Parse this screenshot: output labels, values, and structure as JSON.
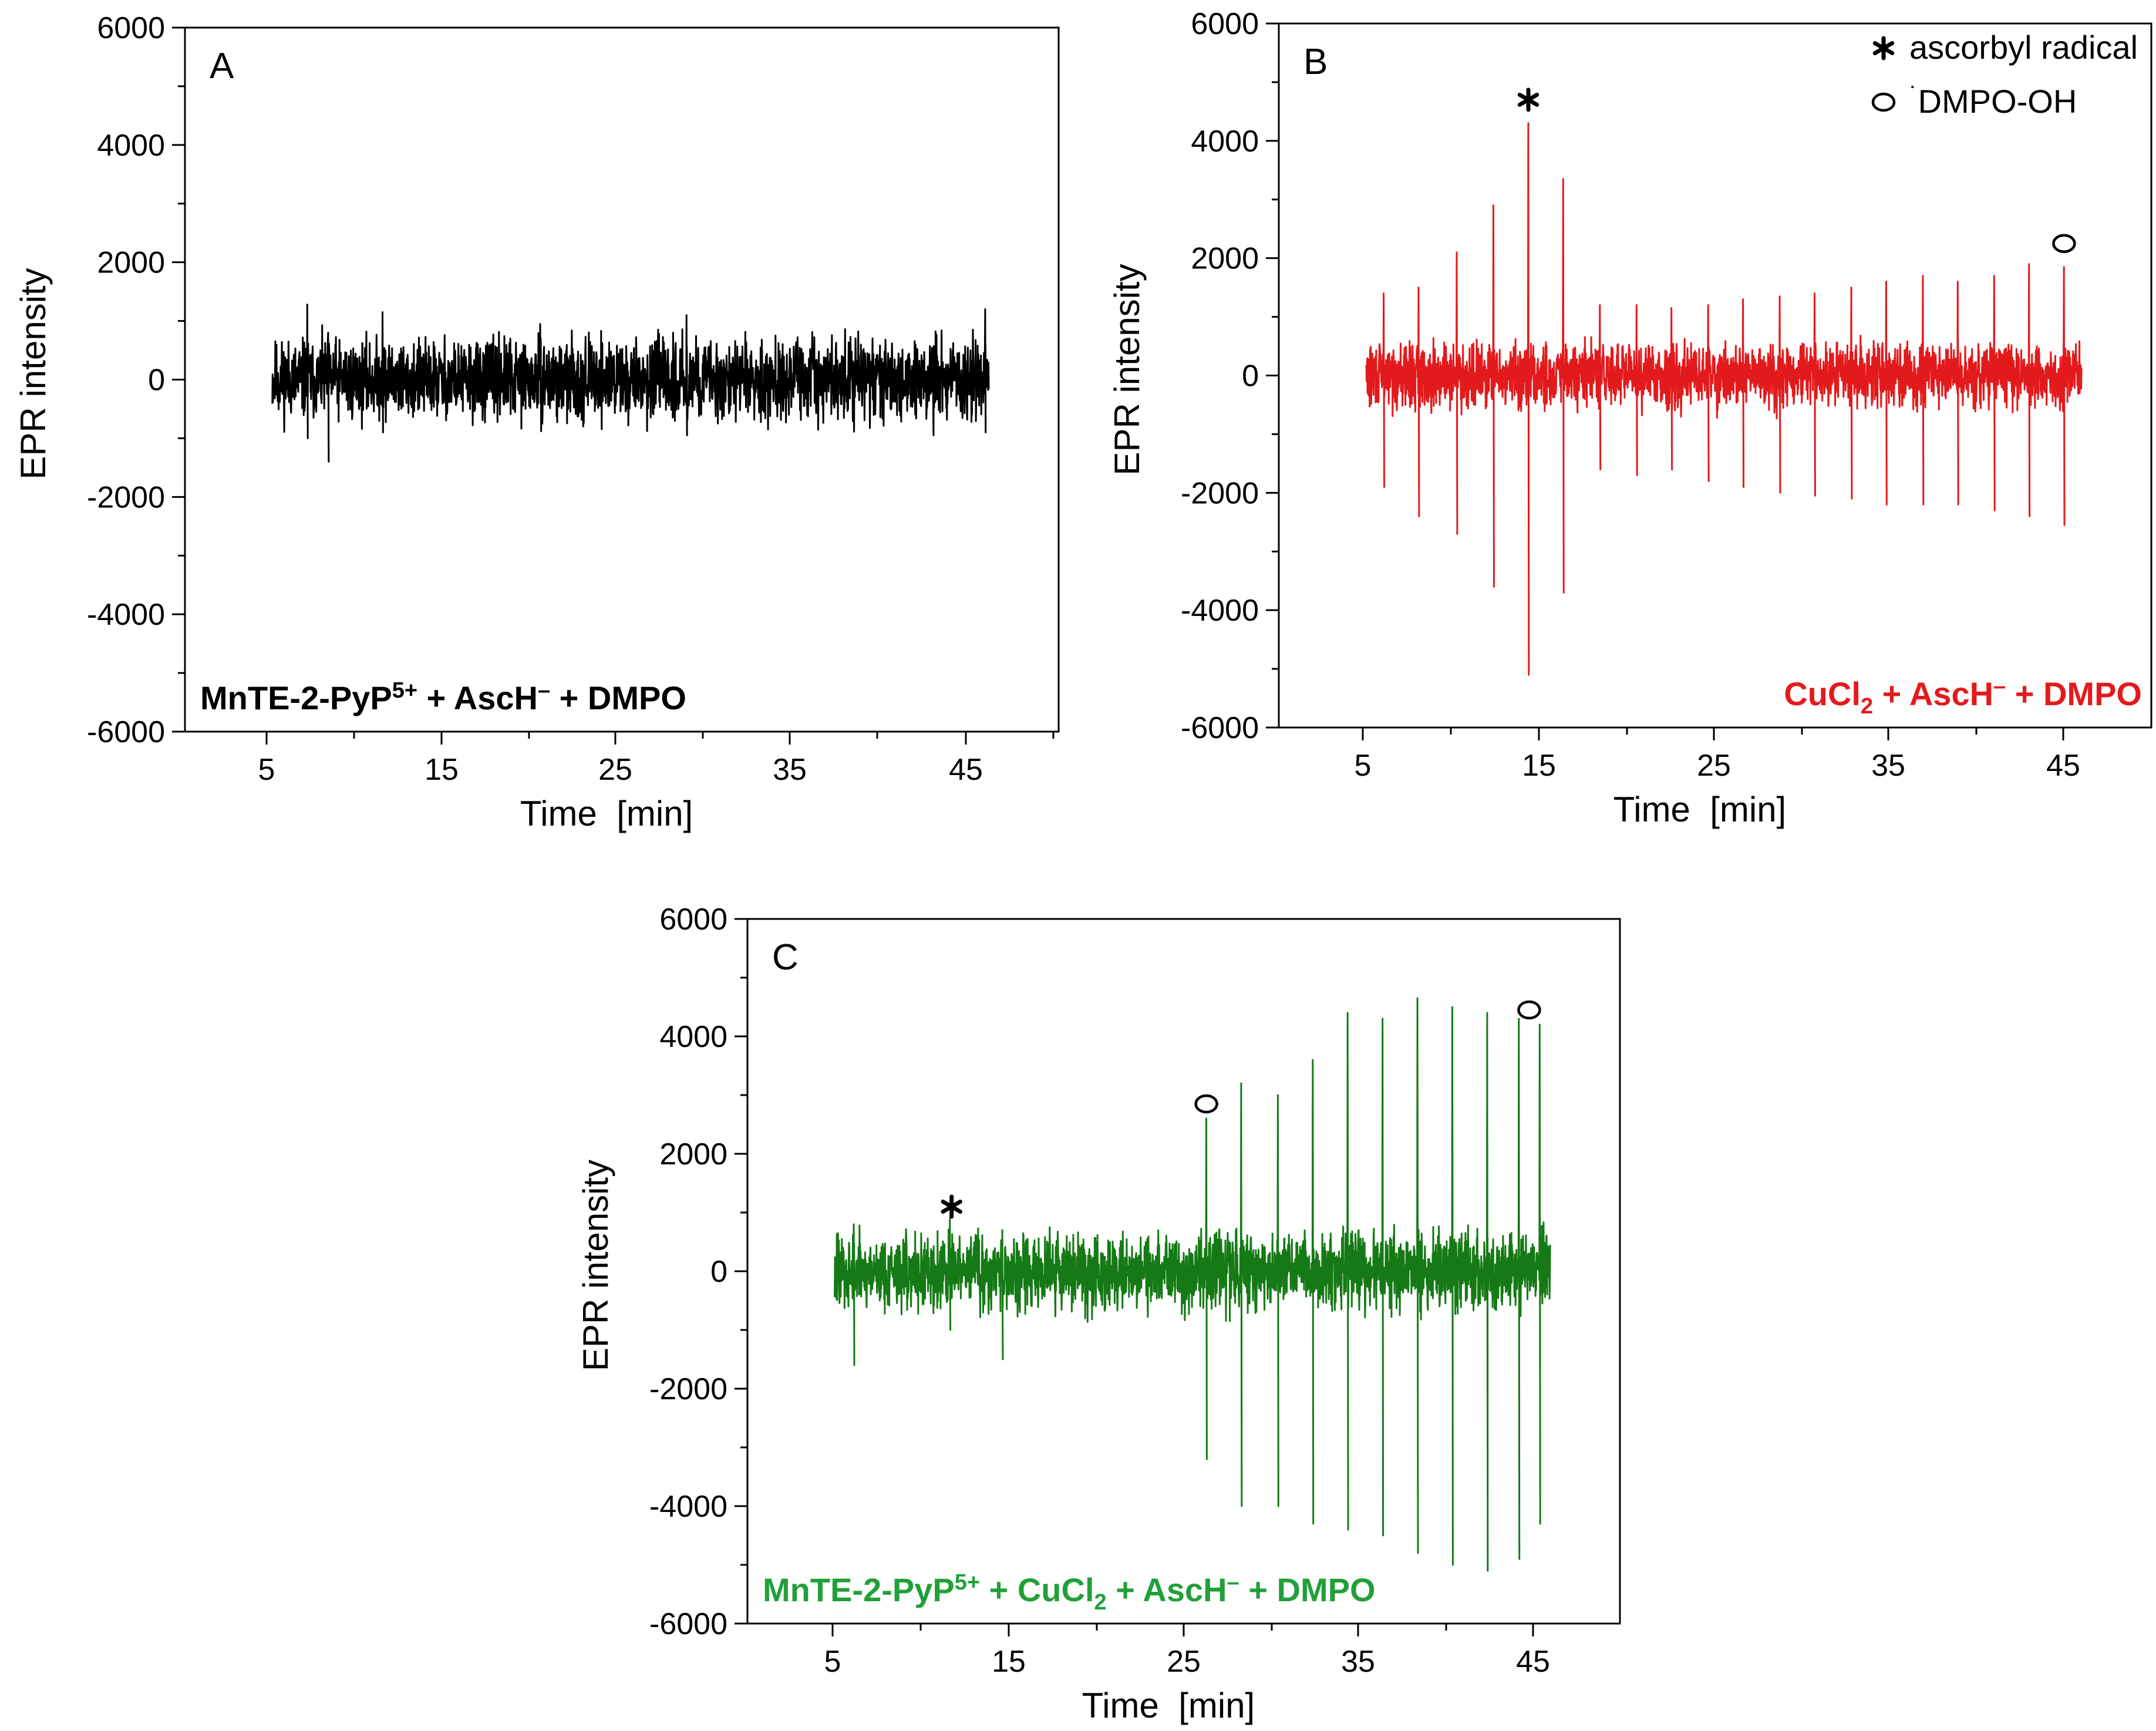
{
  "chart_data": [
    {
      "type": "line",
      "panel_label": "A",
      "color": "#000000",
      "xlabel": "Time  [min]",
      "ylabel": "EPR intensity",
      "xlim": [
        0,
        50
      ],
      "ylim": [
        -6000,
        6000
      ],
      "x_ticks": [
        "5",
        "15",
        "25",
        "35",
        "45"
      ],
      "y_ticks": [
        "6000",
        "4000",
        "2000",
        "0",
        "-2000",
        "-4000",
        "-6000"
      ],
      "condition_parts": [
        "MnTE-2-PyP",
        "5+",
        " + AscH",
        "–",
        " + DMPO"
      ],
      "series": [
        {
          "x_range": [
            5,
            46
          ],
          "noise": 520,
          "peaks": [
            {
              "x": 7.0,
              "high": 1280,
              "low": -1000
            },
            {
              "x": 8.2,
              "high": 800,
              "low": -1400
            },
            {
              "x": 11.3,
              "high": 1150,
              "low": -900
            },
            {
              "x": 28.7,
              "high": 1100,
              "low": -950
            },
            {
              "x": 45.8,
              "high": 1200,
              "low": -900
            }
          ]
        }
      ],
      "markers": [],
      "legend": []
    },
    {
      "type": "line",
      "panel_label": "B",
      "color": "#e31a1c",
      "xlabel": "Time  [min]",
      "ylabel": "EPR intensity",
      "xlim": [
        0,
        50
      ],
      "ylim": [
        -6000,
        6000
      ],
      "x_ticks": [
        "5",
        "15",
        "25",
        "35",
        "45"
      ],
      "y_ticks": [
        "6000",
        "4000",
        "2000",
        "0",
        "-2000",
        "-4000",
        "-6000"
      ],
      "condition_parts": [
        "CuCl",
        "2",
        " + AscH",
        "–",
        " + DMPO"
      ],
      "series": [
        {
          "x_range": [
            5,
            46
          ],
          "noise": 420,
          "peaks": [
            {
              "x": 6.0,
              "high": 1400,
              "low": -1900
            },
            {
              "x": 8.0,
              "high": 1500,
              "low": -2400
            },
            {
              "x": 10.2,
              "high": 2100,
              "low": -2700
            },
            {
              "x": 12.3,
              "high": 2900,
              "low": -3600
            },
            {
              "x": 14.3,
              "high": 4300,
              "low": -5100
            },
            {
              "x": 16.3,
              "high": 3350,
              "low": -3700
            },
            {
              "x": 18.4,
              "high": 1200,
              "low": -1600
            },
            {
              "x": 20.5,
              "high": 1200,
              "low": -1700
            },
            {
              "x": 22.5,
              "high": 1150,
              "low": -1600
            },
            {
              "x": 24.6,
              "high": 1200,
              "low": -1800
            },
            {
              "x": 26.6,
              "high": 1300,
              "low": -1900
            },
            {
              "x": 28.7,
              "high": 1350,
              "low": -2000
            },
            {
              "x": 30.7,
              "high": 1400,
              "low": -2050
            },
            {
              "x": 32.8,
              "high": 1500,
              "low": -2100
            },
            {
              "x": 34.8,
              "high": 1600,
              "low": -2200
            },
            {
              "x": 36.9,
              "high": 1700,
              "low": -2200
            },
            {
              "x": 38.9,
              "high": 1600,
              "low": -2200
            },
            {
              "x": 41.0,
              "high": 1700,
              "low": -2300
            },
            {
              "x": 43.0,
              "high": 1900,
              "low": -2400
            },
            {
              "x": 45.0,
              "high": 1850,
              "low": -2550
            }
          ]
        }
      ],
      "markers": [
        {
          "symbol": "star",
          "x": 14.3,
          "y": 4700
        },
        {
          "symbol": "circle",
          "x": 45.0,
          "y": 2250
        }
      ],
      "legend": [
        {
          "symbol": "star",
          "text": "ascorbyl radical"
        },
        {
          "symbol": "circle",
          "text": "DMPO-OH",
          "prefix": "˙"
        }
      ]
    },
    {
      "type": "line",
      "panel_label": "C",
      "color": "#157a15",
      "label_color": "#21a038",
      "xlabel": "Time  [min]",
      "ylabel": "EPR intensity",
      "xlim": [
        0,
        50
      ],
      "ylim": [
        -6000,
        6000
      ],
      "x_ticks": [
        "5",
        "15",
        "25",
        "35",
        "45"
      ],
      "y_ticks": [
        "6000",
        "4000",
        "2000",
        "0",
        "-2000",
        "-4000",
        "-6000"
      ],
      "condition_parts": [
        "MnTE-2-PyP",
        "5+",
        " + CuCl",
        "2",
        " + AscH",
        "–",
        " + DMPO"
      ],
      "series": [
        {
          "x_range": [
            5,
            46
          ],
          "noise": 500,
          "peaks": [
            {
              "x": 6.1,
              "high": 800,
              "low": -1600
            },
            {
              "x": 11.6,
              "high": 900,
              "low": -1000
            },
            {
              "x": 14.6,
              "high": 700,
              "low": -1500
            },
            {
              "x": 26.3,
              "high": 2600,
              "low": -3200
            },
            {
              "x": 28.3,
              "high": 3200,
              "low": -4000
            },
            {
              "x": 30.4,
              "high": 3000,
              "low": -4000
            },
            {
              "x": 32.4,
              "high": 3600,
              "low": -4300
            },
            {
              "x": 34.4,
              "high": 4400,
              "low": -4400
            },
            {
              "x": 36.4,
              "high": 4300,
              "low": -4500
            },
            {
              "x": 38.4,
              "high": 4650,
              "low": -4800
            },
            {
              "x": 40.4,
              "high": 4500,
              "low": -5000
            },
            {
              "x": 42.4,
              "high": 4400,
              "low": -5100
            },
            {
              "x": 44.2,
              "high": 4300,
              "low": -4900
            },
            {
              "x": 45.4,
              "high": 4200,
              "low": -4300
            }
          ]
        }
      ],
      "markers": [
        {
          "symbol": "star",
          "x": 11.7,
          "y": 1100
        },
        {
          "symbol": "circle",
          "x": 26.3,
          "y": 2850
        },
        {
          "symbol": "circle",
          "x": 44.8,
          "y": 4450
        }
      ],
      "legend": []
    }
  ]
}
